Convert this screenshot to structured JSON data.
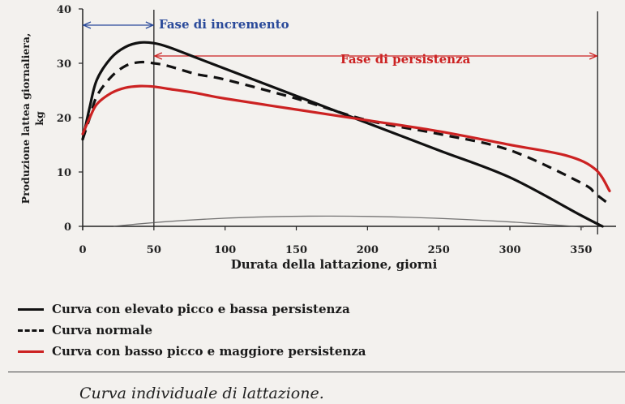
{
  "chart_data": {
    "type": "line",
    "xlabel": "Durata della lattazione, giorni",
    "ylabel_line1": "Produzione lattea giornaliera,",
    "ylabel_line2": "kg",
    "xlim": [
      0,
      370
    ],
    "ylim": [
      0,
      40
    ],
    "x_ticks": [
      "0",
      "50",
      "100",
      "150",
      "200",
      "250",
      "300",
      "350"
    ],
    "y_ticks": [
      "0",
      "10",
      "20",
      "30",
      "40"
    ],
    "phases": [
      {
        "label": "Fase di incremento",
        "from": 0,
        "to": 50,
        "color": "#2a4a9a"
      },
      {
        "label": "Fase di persistenza",
        "from": 50,
        "to": 365,
        "color": "#cc2222"
      }
    ],
    "series": [
      {
        "name": "Curva con elevato picco e bassa persistenza",
        "color": "#111111",
        "dash": "solid",
        "x": [
          0,
          5,
          10,
          20,
          30,
          40,
          50,
          60,
          80,
          100,
          150,
          200,
          250,
          300,
          350,
          365
        ],
        "y": [
          16,
          22,
          27,
          31,
          33,
          33.8,
          33.7,
          33,
          31,
          29,
          24,
          19,
          14,
          9,
          2,
          0
        ]
      },
      {
        "name": "Curva normale",
        "color": "#111111",
        "dash": "dashed",
        "x": [
          0,
          5,
          10,
          20,
          30,
          40,
          50,
          60,
          80,
          100,
          150,
          200,
          250,
          300,
          350,
          360,
          370
        ],
        "y": [
          16,
          20,
          24,
          27.5,
          29.5,
          30.2,
          30,
          29.5,
          28,
          27,
          23.5,
          19.5,
          17,
          14,
          8,
          6,
          4
        ]
      },
      {
        "name": "Curva con basso picco e maggiore persistenza",
        "color": "#cc2222",
        "dash": "solid",
        "x": [
          0,
          5,
          10,
          20,
          30,
          40,
          50,
          60,
          80,
          100,
          150,
          200,
          250,
          300,
          340,
          360,
          370
        ],
        "y": [
          17,
          20,
          22.5,
          24.5,
          25.5,
          25.8,
          25.7,
          25.3,
          24.5,
          23.5,
          21.5,
          19.5,
          17.5,
          15,
          13,
          10.5,
          6.5
        ]
      }
    ],
    "caption": "Curva individuale di lattazione."
  }
}
